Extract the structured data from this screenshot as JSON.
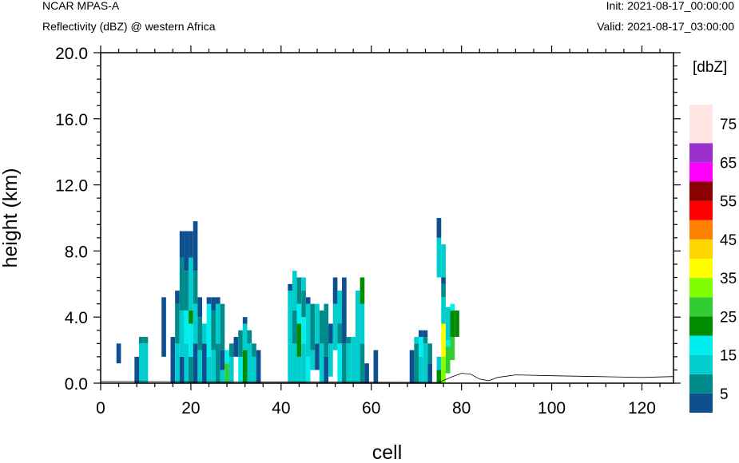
{
  "header": {
    "model": "NCAR MPAS-A",
    "field": "Reflectivity (dBZ) @ western Africa",
    "init": "Init: 2021-08-17_00:00:00",
    "valid": "Valid: 2021-08-17_03:00:00"
  },
  "chart_data": {
    "type": "heatmap",
    "title": "Reflectivity (dBZ) @ western Africa",
    "xlabel": "cell",
    "ylabel": "height (km)",
    "xlim": [
      0,
      127
    ],
    "ylim": [
      0,
      20
    ],
    "xticks": [
      0,
      20,
      40,
      60,
      80,
      100,
      120
    ],
    "yticks": [
      0.0,
      4.0,
      8.0,
      12.0,
      16.0,
      20.0
    ],
    "ytick_labels": [
      "0.0",
      "4.0",
      "8.0",
      "12.0",
      "16.0",
      "20.0"
    ],
    "colorbar": {
      "unit": "[dbZ]",
      "levels": [
        5,
        10,
        15,
        20,
        25,
        30,
        35,
        40,
        45,
        50,
        55,
        60,
        65,
        70,
        75
      ],
      "labels": [
        "5",
        "15",
        "25",
        "35",
        "45",
        "55",
        "65",
        "75"
      ],
      "colors": [
        "#0e4f8f",
        "#008b8b",
        "#00cdcd",
        "#00eeee",
        "#008b00",
        "#32cd32",
        "#7fff00",
        "#ffff00",
        "#ffd700",
        "#ff7f00",
        "#ff0000",
        "#8b0000",
        "#ff00ff",
        "#9932cc",
        "#ffe4e1",
        "#ffe4e1"
      ]
    },
    "columns": [
      {
        "x": 4,
        "segments": [
          [
            1.2,
            2.4,
            5
          ]
        ]
      },
      {
        "x": 8,
        "segments": [
          [
            0,
            1.6,
            5
          ]
        ]
      },
      {
        "x": 9,
        "segments": [
          [
            0,
            2.4,
            15
          ],
          [
            2.4,
            2.8,
            10
          ]
        ]
      },
      {
        "x": 10,
        "segments": [
          [
            0,
            2.4,
            15
          ],
          [
            2.4,
            2.8,
            10
          ]
        ]
      },
      {
        "x": 14,
        "segments": [
          [
            1.6,
            5.2,
            5
          ]
        ]
      },
      {
        "x": 16,
        "segments": [
          [
            0,
            1.6,
            5
          ],
          [
            1.6,
            2.8,
            5
          ]
        ]
      },
      {
        "x": 17,
        "segments": [
          [
            0,
            2.4,
            15
          ],
          [
            2.4,
            4.8,
            10
          ],
          [
            4.8,
            5.6,
            5
          ]
        ]
      },
      {
        "x": 18,
        "segments": [
          [
            0,
            1.6,
            5
          ],
          [
            1.6,
            4.4,
            15
          ],
          [
            4.4,
            7.6,
            10
          ],
          [
            7.6,
            9.2,
            5
          ]
        ]
      },
      {
        "x": 19,
        "segments": [
          [
            0,
            2.4,
            15
          ],
          [
            2.4,
            4.4,
            20
          ],
          [
            4.4,
            6.8,
            10
          ],
          [
            6.8,
            9.2,
            5
          ]
        ]
      },
      {
        "x": 20,
        "segments": [
          [
            0,
            1.6,
            10
          ],
          [
            1.6,
            3.6,
            20
          ],
          [
            3.6,
            4.4,
            25
          ],
          [
            4.4,
            7.6,
            15
          ],
          [
            7.6,
            9.2,
            5
          ]
        ]
      },
      {
        "x": 21,
        "segments": [
          [
            0,
            2.4,
            5
          ],
          [
            2.4,
            4.8,
            15
          ],
          [
            4.8,
            6.8,
            10
          ],
          [
            6.8,
            9.8,
            5
          ]
        ]
      },
      {
        "x": 22,
        "segments": [
          [
            0,
            2.0,
            15
          ],
          [
            2.0,
            4.0,
            10
          ],
          [
            4.0,
            5.2,
            5
          ]
        ]
      },
      {
        "x": 23,
        "segments": [
          [
            0,
            2.4,
            5
          ],
          [
            2.4,
            3.6,
            15
          ]
        ]
      },
      {
        "x": 24,
        "segments": [
          [
            0,
            1.6,
            15
          ],
          [
            1.6,
            4.8,
            20
          ],
          [
            4.8,
            5.2,
            5
          ]
        ]
      },
      {
        "x": 25,
        "segments": [
          [
            0,
            2.0,
            15
          ],
          [
            2.0,
            4.4,
            10
          ],
          [
            4.4,
            5.2,
            5
          ]
        ]
      },
      {
        "x": 26,
        "segments": [
          [
            0,
            2.4,
            10
          ],
          [
            2.4,
            4.8,
            15
          ],
          [
            4.8,
            5.2,
            5
          ]
        ]
      },
      {
        "x": 27,
        "segments": [
          [
            0,
            0.8,
            15
          ],
          [
            0.8,
            2.0,
            5
          ],
          [
            2.0,
            4.8,
            10
          ]
        ]
      },
      {
        "x": 28,
        "segments": [
          [
            0,
            1.2,
            30
          ],
          [
            1.2,
            2.0,
            20
          ]
        ]
      },
      {
        "x": 29,
        "segments": [
          [
            0,
            1.6,
            15
          ],
          [
            1.6,
            2.4,
            10
          ]
        ]
      },
      {
        "x": 30,
        "segments": [
          [
            1.6,
            2.8,
            5
          ]
        ]
      },
      {
        "x": 31,
        "segments": [
          [
            0,
            1.6,
            20
          ],
          [
            1.6,
            3.2,
            10
          ]
        ]
      },
      {
        "x": 32,
        "segments": [
          [
            0,
            2.0,
            25
          ],
          [
            2.0,
            3.6,
            15
          ],
          [
            3.6,
            4.0,
            5
          ]
        ]
      },
      {
        "x": 33,
        "segments": [
          [
            0,
            2.4,
            15
          ],
          [
            2.4,
            3.2,
            10
          ]
        ]
      },
      {
        "x": 34,
        "segments": [
          [
            0,
            1.6,
            15
          ],
          [
            1.6,
            2.4,
            10
          ]
        ]
      },
      {
        "x": 35,
        "segments": [
          [
            0,
            2.0,
            5
          ]
        ]
      },
      {
        "x": 42,
        "segments": [
          [
            0,
            2.4,
            15
          ],
          [
            2.4,
            5.6,
            15
          ],
          [
            5.6,
            6.0,
            5
          ]
        ]
      },
      {
        "x": 43,
        "segments": [
          [
            0,
            2.4,
            15
          ],
          [
            2.4,
            4.4,
            10
          ],
          [
            4.4,
            6.8,
            15
          ]
        ]
      },
      {
        "x": 44,
        "segments": [
          [
            0,
            1.6,
            15
          ],
          [
            1.6,
            3.6,
            25
          ],
          [
            3.6,
            4.8,
            20
          ],
          [
            4.8,
            6.4,
            10
          ]
        ]
      },
      {
        "x": 45,
        "segments": [
          [
            0,
            2.4,
            15
          ],
          [
            2.4,
            4.0,
            20
          ],
          [
            4.0,
            5.6,
            10
          ],
          [
            5.6,
            6.4,
            15
          ]
        ]
      },
      {
        "x": 46,
        "segments": [
          [
            0,
            1.6,
            20
          ],
          [
            1.6,
            4.8,
            15
          ],
          [
            4.8,
            5.2,
            5
          ]
        ]
      },
      {
        "x": 47,
        "segments": [
          [
            0.8,
            2.0,
            15
          ],
          [
            2.0,
            4.8,
            10
          ]
        ]
      },
      {
        "x": 48,
        "segments": [
          [
            0.8,
            2.4,
            5
          ],
          [
            2.4,
            4.8,
            15
          ]
        ]
      },
      {
        "x": 49,
        "segments": [
          [
            0,
            2.4,
            15
          ],
          [
            2.4,
            4.4,
            10
          ]
        ]
      },
      {
        "x": 50,
        "segments": [
          [
            0,
            1.6,
            5
          ],
          [
            1.6,
            4.8,
            10
          ]
        ]
      },
      {
        "x": 51,
        "segments": [
          [
            0.4,
            2.4,
            15
          ],
          [
            2.4,
            3.6,
            5
          ]
        ]
      },
      {
        "x": 52,
        "segments": [
          [
            2.0,
            4.8,
            15
          ],
          [
            4.8,
            6.4,
            5
          ]
        ]
      },
      {
        "x": 53,
        "segments": [
          [
            0,
            2.4,
            20
          ],
          [
            2.4,
            3.6,
            10
          ],
          [
            3.6,
            5.6,
            15
          ]
        ]
      },
      {
        "x": 54,
        "segments": [
          [
            0,
            2.4,
            10
          ],
          [
            2.4,
            6.4,
            5
          ]
        ]
      },
      {
        "x": 55,
        "segments": [
          [
            0,
            2.4,
            15
          ],
          [
            2.4,
            2.8,
            10
          ]
        ]
      },
      {
        "x": 56,
        "segments": [
          [
            0,
            2.8,
            15
          ]
        ]
      },
      {
        "x": 57,
        "segments": [
          [
            0,
            2.8,
            15
          ],
          [
            2.8,
            5.6,
            15
          ]
        ]
      },
      {
        "x": 58,
        "segments": [
          [
            0,
            2.4,
            10
          ],
          [
            2.4,
            4.8,
            15
          ],
          [
            4.8,
            6.4,
            25
          ]
        ]
      },
      {
        "x": 59,
        "segments": [
          [
            0,
            1.2,
            5
          ]
        ]
      },
      {
        "x": 61,
        "segments": [
          [
            0,
            2.0,
            5
          ]
        ]
      },
      {
        "x": 69,
        "segments": [
          [
            0,
            2.0,
            5
          ]
        ]
      },
      {
        "x": 70,
        "segments": [
          [
            0,
            2.4,
            10
          ],
          [
            2.4,
            2.8,
            15
          ]
        ]
      },
      {
        "x": 71,
        "segments": [
          [
            0,
            1.6,
            15
          ],
          [
            1.6,
            2.8,
            20
          ],
          [
            2.8,
            3.2,
            5
          ]
        ]
      },
      {
        "x": 72,
        "segments": [
          [
            0,
            2.4,
            15
          ],
          [
            2.4,
            2.8,
            10
          ],
          [
            2.8,
            3.2,
            5
          ]
        ]
      },
      {
        "x": 73,
        "segments": [
          [
            0,
            1.2,
            5
          ],
          [
            1.2,
            2.4,
            10
          ]
        ]
      },
      {
        "x": 75,
        "segments": [
          [
            0,
            0.8,
            25
          ],
          [
            0.8,
            1.6,
            15
          ],
          [
            6.4,
            8.8,
            15
          ],
          [
            8.8,
            10.0,
            5
          ]
        ]
      },
      {
        "x": 76,
        "segments": [
          [
            0,
            1.6,
            35
          ],
          [
            1.6,
            3.6,
            40
          ],
          [
            3.6,
            5.2,
            15
          ],
          [
            5.2,
            6.0,
            10
          ],
          [
            6.0,
            6.4,
            5
          ],
          [
            6.4,
            8.4,
            15
          ]
        ]
      },
      {
        "x": 77,
        "segments": [
          [
            0.6,
            2.2,
            30
          ],
          [
            2.2,
            2.6,
            20
          ],
          [
            2.6,
            4.6,
            15
          ]
        ]
      },
      {
        "x": 78,
        "segments": [
          [
            1.4,
            2.8,
            30
          ],
          [
            2.8,
            4.4,
            25
          ],
          [
            4.4,
            4.8,
            20
          ]
        ]
      },
      {
        "x": 79,
        "segments": [
          [
            2.8,
            4.4,
            25
          ]
        ]
      }
    ],
    "terrain": [
      [
        0,
        0.1
      ],
      [
        75,
        0.05
      ],
      [
        78,
        0.4
      ],
      [
        80,
        0.6
      ],
      [
        82,
        0.55
      ],
      [
        84,
        0.25
      ],
      [
        86,
        0.15
      ],
      [
        88,
        0.35
      ],
      [
        92,
        0.5
      ],
      [
        100,
        0.45
      ],
      [
        110,
        0.4
      ],
      [
        120,
        0.35
      ],
      [
        127,
        0.4
      ]
    ]
  }
}
